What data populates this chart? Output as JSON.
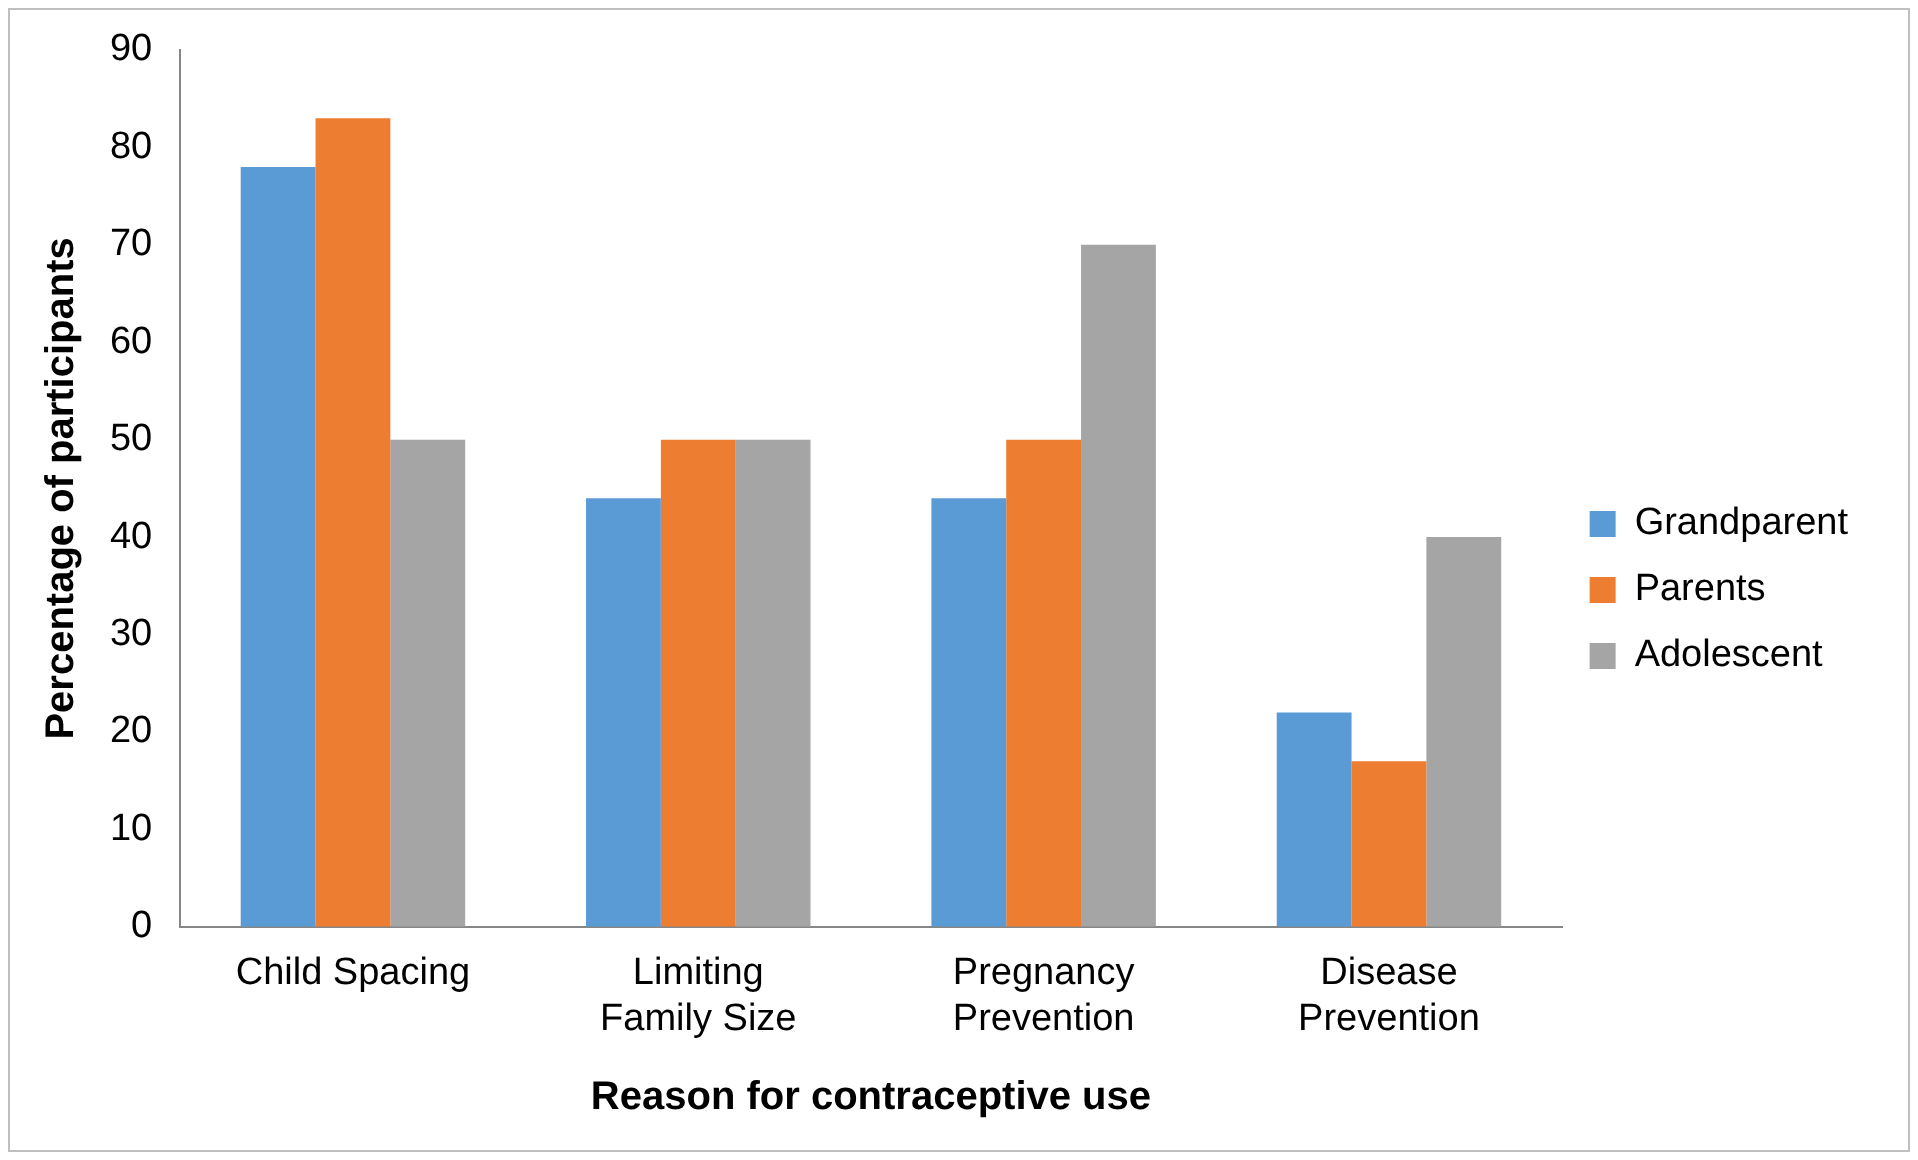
{
  "chart_data": {
    "type": "bar",
    "xlabel": "Reason for contraceptive use",
    "ylabel": "Percentage of participants",
    "categories": [
      "Child Spacing",
      "Limiting Family Size",
      "Pregnancy Prevention",
      "Disease Prevention"
    ],
    "series": [
      {
        "name": "Grandparent",
        "color": "#5b9bd5",
        "values": [
          78,
          44,
          44,
          22
        ]
      },
      {
        "name": "Parents",
        "color": "#ed7d31",
        "values": [
          83,
          50,
          50,
          17
        ]
      },
      {
        "name": "Adolescent",
        "color": "#a5a5a5",
        "values": [
          50,
          50,
          70,
          40
        ]
      }
    ],
    "ylim": [
      0,
      90
    ],
    "yticks": [
      0,
      10,
      20,
      30,
      40,
      50,
      60,
      70,
      80,
      90
    ],
    "grid": false,
    "legend": "right"
  }
}
